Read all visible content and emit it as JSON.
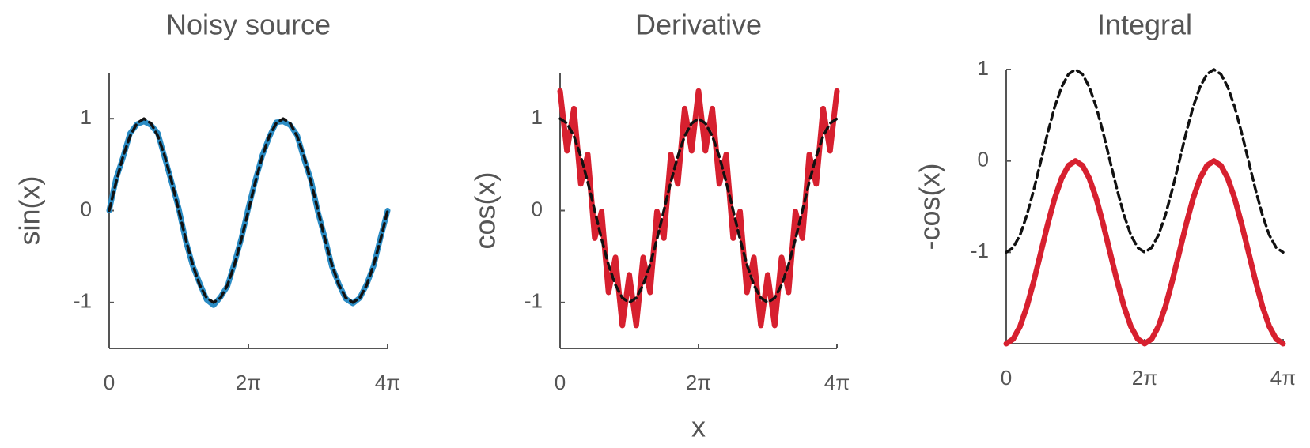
{
  "chart_data": [
    {
      "type": "line",
      "title": "Noisy source",
      "ylabel": "sin(x)",
      "x": [
        0,
        0.314,
        0.628,
        0.942,
        1.257,
        1.571,
        1.885,
        2.199,
        2.513,
        2.827,
        3.142,
        3.456,
        3.77,
        4.084,
        4.398,
        4.712,
        5.027,
        5.341,
        5.655,
        5.969,
        6.283,
        6.597,
        6.912,
        7.226,
        7.54,
        7.854,
        8.168,
        8.482,
        8.796,
        9.111,
        9.425,
        9.739,
        10.053,
        10.367,
        10.681,
        10.996,
        11.31,
        11.624,
        11.938,
        12.252,
        12.566
      ],
      "series": [
        {
          "color": "#2b8cc4",
          "style": "solid",
          "values": [
            0,
            0.35,
            0.58,
            0.84,
            0.94,
            0.97,
            0.93,
            0.84,
            0.57,
            0.3,
            0.02,
            -0.33,
            -0.6,
            -0.79,
            -0.97,
            -1.03,
            -0.94,
            -0.82,
            -0.57,
            -0.3,
            0.03,
            0.33,
            0.6,
            0.8,
            0.96,
            0.97,
            0.93,
            0.82,
            0.56,
            0.33,
            -0.02,
            -0.3,
            -0.61,
            -0.8,
            -0.96,
            -1.01,
            -0.95,
            -0.8,
            -0.6,
            -0.29,
            0
          ]
        },
        {
          "color": "#111111",
          "style": "dashed",
          "values": [
            0,
            0.31,
            0.59,
            0.81,
            0.95,
            1,
            0.95,
            0.81,
            0.59,
            0.31,
            0,
            -0.31,
            -0.59,
            -0.81,
            -0.95,
            -1,
            -0.95,
            -0.81,
            -0.59,
            -0.31,
            0,
            0.31,
            0.59,
            0.81,
            0.95,
            1,
            0.95,
            0.81,
            0.59,
            0.31,
            0,
            -0.31,
            -0.59,
            -0.81,
            -0.95,
            -1,
            -0.95,
            -0.81,
            -0.59,
            -0.31,
            0
          ]
        }
      ],
      "xlim": [
        0,
        12.566
      ],
      "xticks": [
        0,
        {
          "value": 6.283,
          "label": "2π"
        },
        {
          "value": 12.566,
          "label": "4π"
        }
      ],
      "ylim": [
        -1.5,
        1.5
      ],
      "yticks": [
        -1,
        0,
        1
      ]
    },
    {
      "type": "line",
      "title": "Derivative",
      "ylabel": "cos(x)",
      "xlabel": "x",
      "x": [
        0,
        0.314,
        0.628,
        0.942,
        1.257,
        1.571,
        1.885,
        2.199,
        2.513,
        2.827,
        3.142,
        3.456,
        3.77,
        4.084,
        4.398,
        4.712,
        5.027,
        5.341,
        5.655,
        5.969,
        6.283,
        6.597,
        6.912,
        7.226,
        7.54,
        7.854,
        8.168,
        8.482,
        8.796,
        9.111,
        9.425,
        9.739,
        10.053,
        10.367,
        10.681,
        10.996,
        11.31,
        11.624,
        11.938,
        12.252,
        12.566
      ],
      "series": [
        {
          "color": "#d7202f",
          "style": "solid",
          "values": [
            1.3,
            0.65,
            1.11,
            0.29,
            0.61,
            -0.3,
            -0.01,
            -0.89,
            -0.51,
            -1.25,
            -0.7,
            -1.25,
            -0.51,
            -0.89,
            -0.01,
            -0.3,
            0.61,
            0.29,
            1.11,
            0.65,
            1.3,
            0.65,
            1.11,
            0.29,
            0.61,
            -0.3,
            -0.01,
            -0.89,
            -0.51,
            -1.25,
            -0.7,
            -1.25,
            -0.51,
            -0.89,
            -0.01,
            -0.3,
            0.61,
            0.29,
            1.11,
            0.65,
            1.3
          ]
        },
        {
          "color": "#111111",
          "style": "dashed",
          "values": [
            1,
            0.95,
            0.81,
            0.59,
            0.31,
            0,
            -0.31,
            -0.59,
            -0.81,
            -0.95,
            -1,
            -0.95,
            -0.81,
            -0.59,
            -0.31,
            0,
            0.31,
            0.59,
            0.81,
            0.95,
            1,
            0.95,
            0.81,
            0.59,
            0.31,
            0,
            -0.31,
            -0.59,
            -0.81,
            -0.95,
            -1,
            -0.95,
            -0.81,
            -0.59,
            -0.31,
            0,
            0.31,
            0.59,
            0.81,
            0.95,
            1
          ]
        }
      ],
      "xlim": [
        0,
        12.566
      ],
      "xticks": [
        0,
        {
          "value": 6.283,
          "label": "2π"
        },
        {
          "value": 12.566,
          "label": "4π"
        }
      ],
      "ylim": [
        -1.5,
        1.5
      ],
      "yticks": [
        -1,
        0,
        1
      ]
    },
    {
      "type": "line",
      "title": "Integral",
      "ylabel": "-cos(x)",
      "x": [
        0,
        0.314,
        0.628,
        0.942,
        1.257,
        1.571,
        1.885,
        2.199,
        2.513,
        2.827,
        3.142,
        3.456,
        3.77,
        4.084,
        4.398,
        4.712,
        5.027,
        5.341,
        5.655,
        5.969,
        6.283,
        6.597,
        6.912,
        7.226,
        7.54,
        7.854,
        8.168,
        8.482,
        8.796,
        9.111,
        9.425,
        9.739,
        10.053,
        10.367,
        10.681,
        10.996,
        11.31,
        11.624,
        11.938,
        12.252,
        12.566
      ],
      "series": [
        {
          "color": "#d7202f",
          "style": "solid",
          "values": [
            -2,
            -1.95,
            -1.81,
            -1.59,
            -1.31,
            -1,
            -0.69,
            -0.41,
            -0.19,
            -0.05,
            0,
            -0.05,
            -0.19,
            -0.41,
            -0.69,
            -1,
            -1.31,
            -1.59,
            -1.81,
            -1.95,
            -2,
            -1.95,
            -1.81,
            -1.59,
            -1.31,
            -1,
            -0.69,
            -0.41,
            -0.19,
            -0.05,
            0,
            -0.05,
            -0.19,
            -0.41,
            -0.69,
            -1,
            -1.31,
            -1.59,
            -1.81,
            -1.95,
            -2
          ]
        },
        {
          "color": "#111111",
          "style": "dashed",
          "values": [
            -1,
            -0.95,
            -0.81,
            -0.59,
            -0.31,
            0,
            0.31,
            0.59,
            0.81,
            0.95,
            1,
            0.95,
            0.81,
            0.59,
            0.31,
            0,
            -0.31,
            -0.59,
            -0.81,
            -0.95,
            -1,
            -0.95,
            -0.81,
            -0.59,
            -0.31,
            0,
            0.31,
            0.59,
            0.81,
            0.95,
            1,
            0.95,
            0.81,
            0.59,
            0.31,
            0,
            -0.31,
            -0.59,
            -0.81,
            -0.95,
            -1
          ]
        }
      ],
      "xlim": [
        0,
        12.566
      ],
      "xticks": [
        0,
        {
          "value": 6.283,
          "label": "2π"
        },
        {
          "value": 12.566,
          "label": "4π"
        }
      ],
      "ylim": [
        -2,
        1
      ],
      "yticks": [
        -1,
        0,
        1
      ]
    }
  ]
}
